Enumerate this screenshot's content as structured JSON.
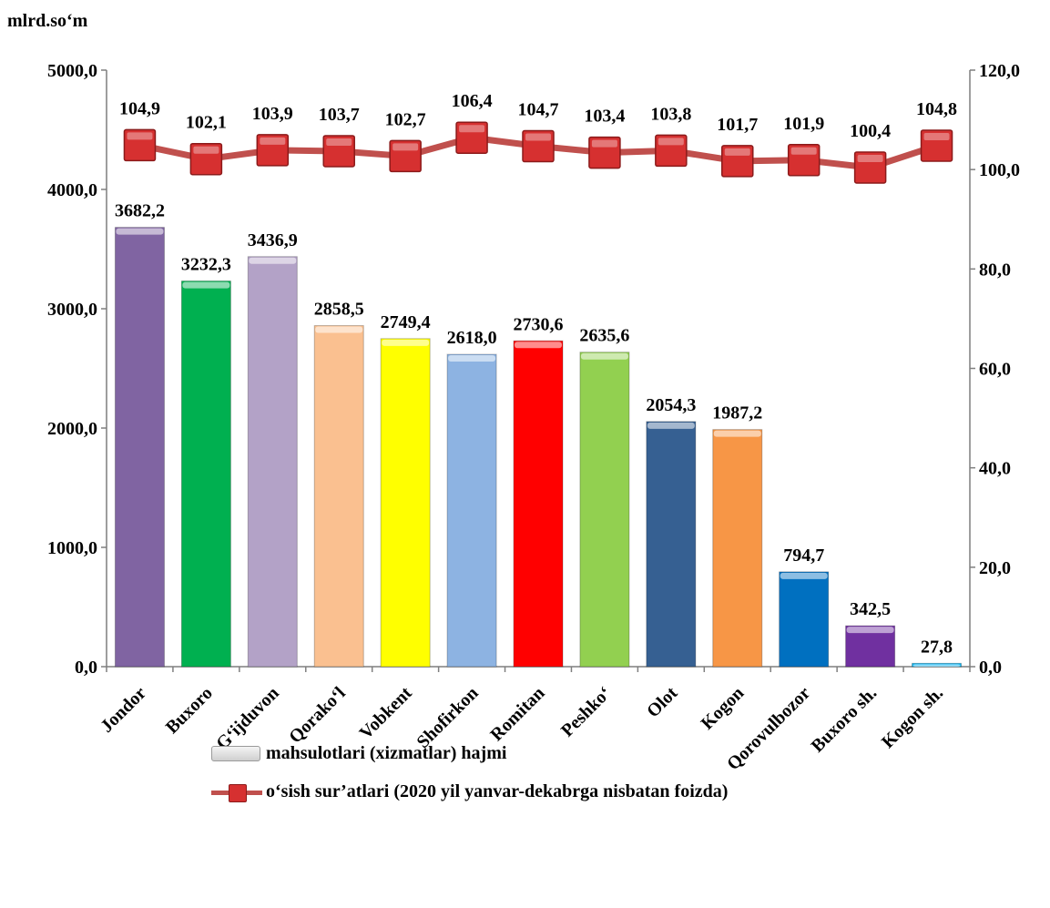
{
  "unit_label": "mlrd.so‘m",
  "legend": {
    "bar_label": "mahsulotlari (xizmatlar) hajmi",
    "line_label": "o‘sish sur’atlari (2020 yil yanvar-dekabrga  nisbatan foizda)"
  },
  "chart_data": {
    "type": "bar",
    "categories": [
      "Jondor",
      "Buxoro",
      "G‘ijduvon",
      "Qorako‘l",
      "Vobkent",
      "Shofirkon",
      "Romitan",
      "Peshko‘",
      "Olot",
      "Kogon",
      "Qorovulbozor",
      "Buxoro sh.",
      "Kogon sh."
    ],
    "series": [
      {
        "type": "bar",
        "axis": "left",
        "values": [
          3682.2,
          3232.3,
          3436.9,
          2858.5,
          2749.4,
          2618.0,
          2730.6,
          2635.6,
          2054.3,
          1987.2,
          794.7,
          342.5,
          27.8
        ],
        "labels": [
          "3682,2",
          "3232,3",
          "3436,9",
          "2858,5",
          "2749,4",
          "2618,0",
          "2730,6",
          "2635,6",
          "2054,3",
          "1987,2",
          "794,7",
          "342,5",
          "27,8"
        ],
        "colors": [
          "#8064a2",
          "#00b050",
          "#b3a2c7",
          "#fac090",
          "#ffff00",
          "#8db3e2",
          "#ff0000",
          "#92d050",
          "#366092",
          "#f79646",
          "#0070c0",
          "#7030a0",
          "#00b0f0"
        ]
      },
      {
        "type": "line",
        "axis": "right",
        "values": [
          104.9,
          102.1,
          103.9,
          103.7,
          102.7,
          106.4,
          104.7,
          103.4,
          103.8,
          101.7,
          101.9,
          100.4,
          104.8
        ],
        "labels": [
          "104,9",
          "102,1",
          "103,9",
          "103,7",
          "102,7",
          "106,4",
          "104,7",
          "103,4",
          "103,8",
          "101,7",
          "101,9",
          "100,4",
          "104,8"
        ],
        "color": "#c0504d",
        "marker_color": "#d63030"
      }
    ],
    "ylim_left": [
      0,
      5000
    ],
    "yticks_left": [
      "0,0",
      "1000,0",
      "2000,0",
      "3000,0",
      "4000,0",
      "5000,0"
    ],
    "ylim_right": [
      0,
      120
    ],
    "yticks_right": [
      "0,0",
      "20,0",
      "40,0",
      "60,0",
      "80,0",
      "100,0",
      "120,0"
    ],
    "grid": false,
    "legend_position": "bottom"
  }
}
